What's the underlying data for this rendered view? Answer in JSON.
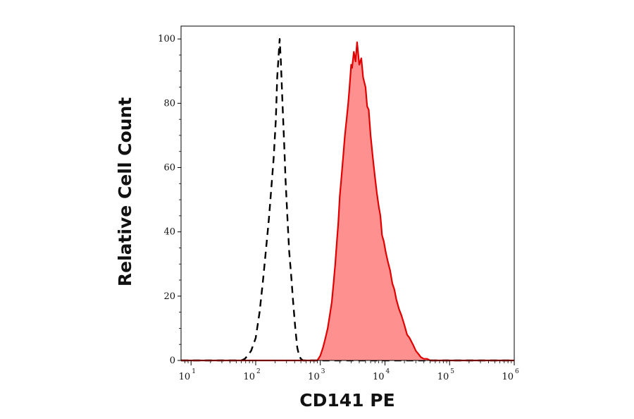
{
  "chart_data": {
    "type": "area",
    "xlabel": "CD141 PE",
    "ylabel": "Relative Cell Count",
    "xscale": "log",
    "xlim": [
      7,
      1000000
    ],
    "ylim": [
      0,
      104
    ],
    "x_ticks": [
      {
        "base": "10",
        "exp": "1"
      },
      {
        "base": "10",
        "exp": "2"
      },
      {
        "base": "10",
        "exp": "3"
      },
      {
        "base": "10",
        "exp": "4"
      },
      {
        "base": "10",
        "exp": "5"
      },
      {
        "base": "10",
        "exp": "6"
      }
    ],
    "x_tick_values": [
      10,
      100,
      1000,
      10000,
      100000,
      1000000
    ],
    "y_ticks": [
      "0",
      "20",
      "40",
      "60",
      "80",
      "100"
    ],
    "y_tick_values": [
      0,
      20,
      40,
      60,
      80,
      100
    ],
    "grid": false,
    "series": [
      {
        "style": "dashed-outline",
        "color": "#000000",
        "x": [
          7,
          60,
          68,
          75,
          85,
          100,
          115,
          130,
          145,
          160,
          175,
          190,
          205,
          215,
          225,
          235,
          245,
          260,
          275,
          290,
          310,
          330,
          355,
          380,
          410,
          440,
          470,
          500,
          540,
          600,
          1000000
        ],
        "y": [
          0,
          0,
          0.5,
          1.5,
          3,
          7,
          15,
          25,
          35,
          44,
          54,
          63,
          75,
          88,
          94,
          100,
          93,
          80,
          68,
          56,
          44,
          34,
          26,
          18,
          10,
          4,
          1.5,
          0.5,
          0,
          0,
          0
        ]
      },
      {
        "style": "filled",
        "color": "#e00000",
        "fill": "#ff9090",
        "x": [
          7,
          900,
          1000,
          1100,
          1200,
          1300,
          1400,
          1500,
          1600,
          1700,
          1800,
          1900,
          2000,
          2100,
          2250,
          2400,
          2550,
          2700,
          2800,
          2900,
          3000,
          3100,
          3300,
          3500,
          3700,
          4000,
          4300,
          4600,
          5000,
          5300,
          5600,
          6000,
          6500,
          7000,
          7500,
          8000,
          8500,
          9000,
          9600,
          10200,
          11000,
          12000,
          13000,
          14000,
          15000,
          16500,
          18000,
          20000,
          22000,
          24000,
          27000,
          30000,
          33000,
          36000,
          40000,
          45000,
          50000,
          60000,
          1000000
        ],
        "y": [
          0,
          0,
          1.5,
          4,
          7,
          10,
          14,
          18,
          24,
          30,
          37,
          43,
          51,
          56,
          63,
          70,
          75,
          80,
          84,
          88,
          92,
          91,
          96,
          93,
          99,
          92,
          94,
          88,
          85,
          79,
          78,
          70,
          63,
          57,
          52,
          48,
          45,
          39,
          37,
          34,
          31,
          28,
          24,
          22,
          19,
          16,
          14,
          11,
          8,
          7,
          5,
          3,
          2,
          1,
          0.5,
          0.5,
          0,
          0,
          0
        ]
      }
    ]
  },
  "colors": {
    "axis": "#000000",
    "text": "#111111",
    "stained_line": "#e00000",
    "stained_fill": "#ff9090",
    "control_line": "#000000"
  }
}
